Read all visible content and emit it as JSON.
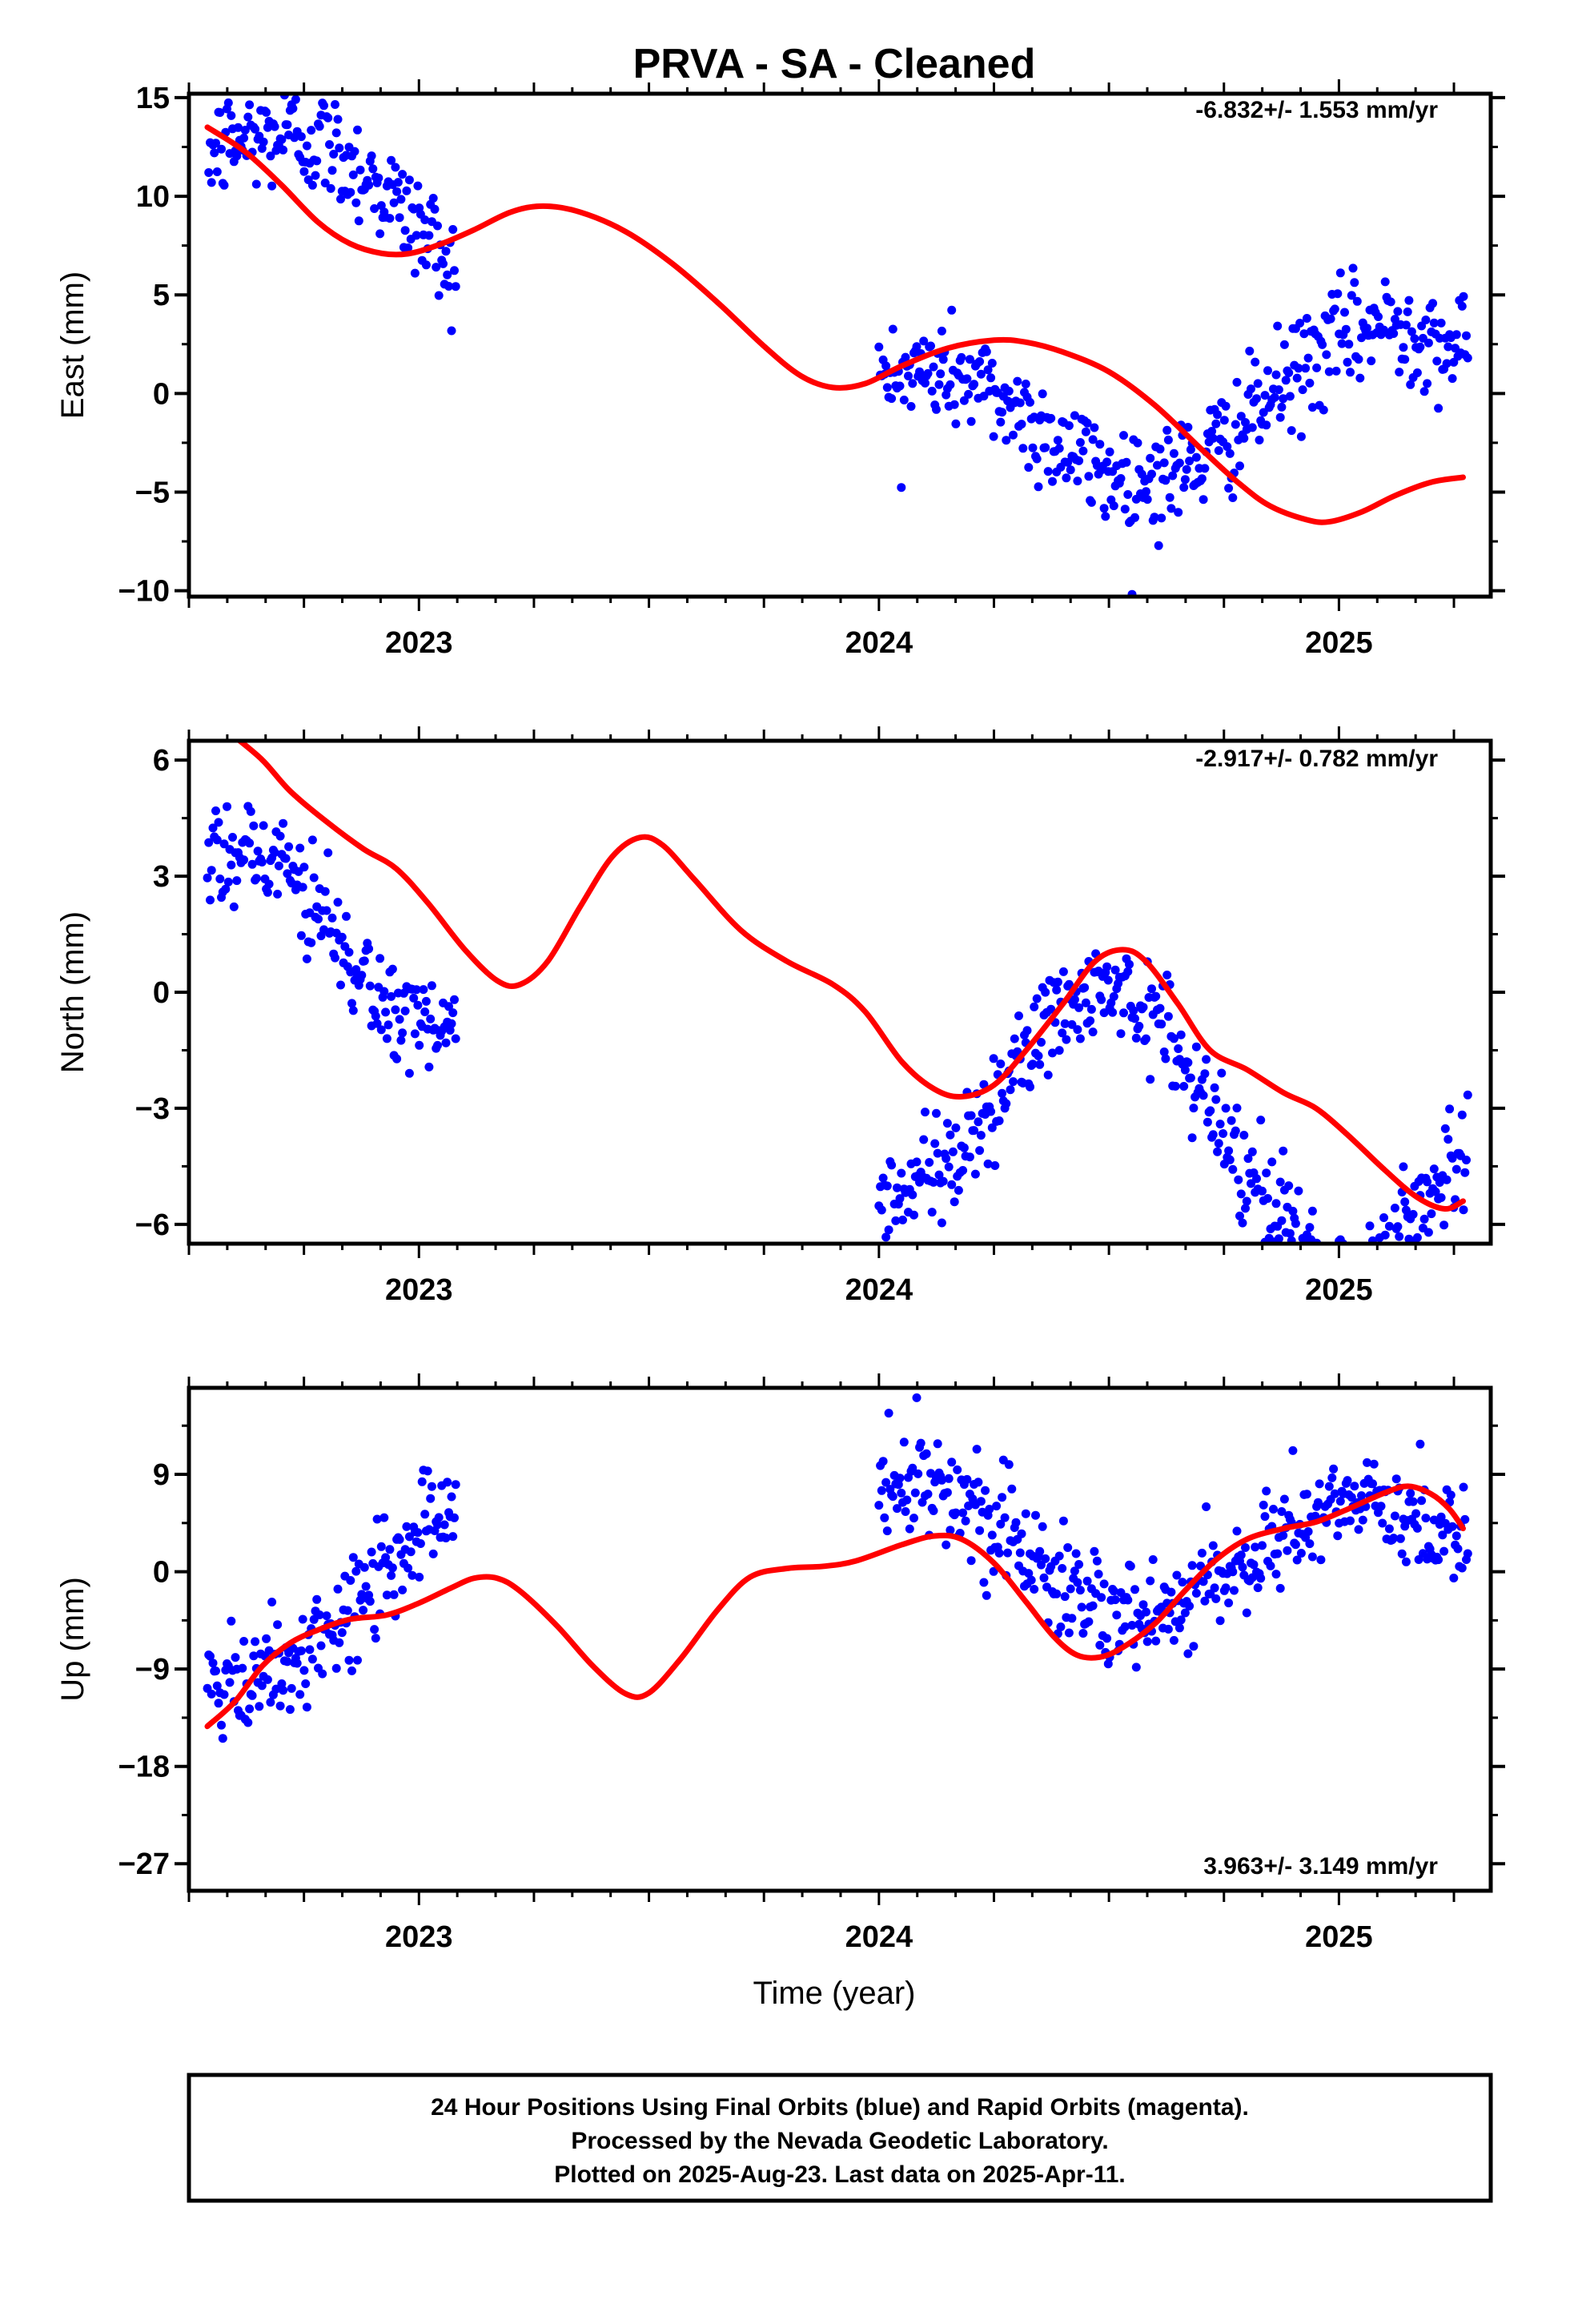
{
  "title": "PRVA  - SA - Cleaned",
  "xlabel": "Time (year)",
  "footer": [
    "24 Hour Positions Using Final Orbits (blue) and Rapid Orbits (magenta).",
    "Processed by the Nevada Geodetic Laboratory.",
    "Plotted on 2025-Aug-23. Last data on 2025-Apr-11."
  ],
  "colors": {
    "final_points": "#0000ff",
    "model": "#ff0000",
    "axes": "#000000"
  },
  "chart_data": [
    {
      "type": "scatter",
      "ylabel": "East (mm)",
      "rate_label": "-6.832+/- 1.553 mm/yr",
      "xlim": [
        2022.5,
        2025.33
      ],
      "ylim": [
        -10.3,
        15.2
      ],
      "yticks": [
        15,
        10,
        5,
        0,
        -5,
        -10
      ],
      "ytick_labels": [
        "15",
        "10",
        "5",
        "0",
        "−5",
        "−10"
      ],
      "xticks": [
        2023,
        2024,
        2025
      ],
      "xtick_labels": [
        "2023",
        "2024",
        "2025"
      ],
      "model_curve": [
        [
          2022.54,
          13.5
        ],
        [
          2022.62,
          12.3
        ],
        [
          2022.7,
          10.6
        ],
        [
          2022.78,
          8.7
        ],
        [
          2022.85,
          7.6
        ],
        [
          2022.92,
          7.1
        ],
        [
          2022.98,
          7.1
        ],
        [
          2023.05,
          7.6
        ],
        [
          2023.12,
          8.3
        ],
        [
          2023.2,
          9.2
        ],
        [
          2023.27,
          9.5
        ],
        [
          2023.35,
          9.2
        ],
        [
          2023.45,
          8.2
        ],
        [
          2023.55,
          6.6
        ],
        [
          2023.65,
          4.6
        ],
        [
          2023.75,
          2.4
        ],
        [
          2023.83,
          0.9
        ],
        [
          2023.9,
          0.3
        ],
        [
          2023.97,
          0.5
        ],
        [
          2024.05,
          1.4
        ],
        [
          2024.15,
          2.3
        ],
        [
          2024.25,
          2.7
        ],
        [
          2024.32,
          2.6
        ],
        [
          2024.4,
          2.1
        ],
        [
          2024.5,
          1.1
        ],
        [
          2024.6,
          -0.6
        ],
        [
          2024.7,
          -2.8
        ],
        [
          2024.78,
          -4.5
        ],
        [
          2024.85,
          -5.7
        ],
        [
          2024.93,
          -6.4
        ],
        [
          2024.98,
          -6.5
        ],
        [
          2025.05,
          -6.0
        ],
        [
          2025.12,
          -5.2
        ],
        [
          2025.2,
          -4.5
        ],
        [
          2025.27,
          -4.25
        ]
      ],
      "trend_segments": [
        {
          "x0": 2022.54,
          "x1": 2023.08,
          "y0": 12.2,
          "y1": 8.0,
          "amp": 2.4,
          "period": 0.9,
          "phase": 0.0
        },
        {
          "x0": 2024.0,
          "x1": 2025.28,
          "y0": -2.4,
          "y1": 0.6,
          "amp": 3.3,
          "period": 1.0,
          "phase": 1.0
        }
      ]
    },
    {
      "type": "scatter",
      "ylabel": "North (mm)",
      "rate_label": "-2.917+/- 0.782 mm/yr",
      "xlim": [
        2022.5,
        2025.33
      ],
      "ylim": [
        -6.5,
        6.5
      ],
      "yticks": [
        6,
        3,
        0,
        -3,
        -6
      ],
      "ytick_labels": [
        "6",
        "3",
        "0",
        "−3",
        "−6"
      ],
      "xticks": [
        2023,
        2024,
        2025
      ],
      "xtick_labels": [
        "2023",
        "2024",
        "2025"
      ],
      "model_curve": [
        [
          2022.6,
          6.6
        ],
        [
          2022.66,
          6.0
        ],
        [
          2022.72,
          5.2
        ],
        [
          2022.8,
          4.4
        ],
        [
          2022.88,
          3.7
        ],
        [
          2022.95,
          3.2
        ],
        [
          2023.02,
          2.3
        ],
        [
          2023.1,
          1.1
        ],
        [
          2023.17,
          0.3
        ],
        [
          2023.22,
          0.2
        ],
        [
          2023.28,
          0.8
        ],
        [
          2023.35,
          2.2
        ],
        [
          2023.42,
          3.5
        ],
        [
          2023.48,
          4.0
        ],
        [
          2023.53,
          3.8
        ],
        [
          2023.6,
          2.9
        ],
        [
          2023.7,
          1.6
        ],
        [
          2023.8,
          0.8
        ],
        [
          2023.9,
          0.2
        ],
        [
          2023.97,
          -0.5
        ],
        [
          2024.05,
          -1.8
        ],
        [
          2024.12,
          -2.5
        ],
        [
          2024.18,
          -2.7
        ],
        [
          2024.25,
          -2.4
        ],
        [
          2024.32,
          -1.5
        ],
        [
          2024.4,
          -0.3
        ],
        [
          2024.47,
          0.8
        ],
        [
          2024.53,
          1.1
        ],
        [
          2024.58,
          0.8
        ],
        [
          2024.65,
          -0.3
        ],
        [
          2024.72,
          -1.5
        ],
        [
          2024.8,
          -2.0
        ],
        [
          2024.88,
          -2.6
        ],
        [
          2024.95,
          -3.0
        ],
        [
          2025.02,
          -3.7
        ],
        [
          2025.1,
          -4.6
        ],
        [
          2025.17,
          -5.3
        ],
        [
          2025.23,
          -5.6
        ],
        [
          2025.27,
          -5.4
        ]
      ],
      "trend_segments": [
        {
          "x0": 2022.54,
          "x1": 2023.08,
          "y0": 3.6,
          "y1": -0.6,
          "amp": 1.0,
          "period": 0.55,
          "phase": 0.0
        },
        {
          "x0": 2024.0,
          "x1": 2025.28,
          "y0": -2.5,
          "y1": -4.3,
          "amp": 3.2,
          "period": 1.0,
          "phase": 4.7
        }
      ]
    },
    {
      "type": "scatter",
      "ylabel": "Up (mm)",
      "rate_label": "3.963+/- 3.149 mm/yr",
      "xlim": [
        2022.5,
        2025.33
      ],
      "ylim": [
        -29.5,
        17.0
      ],
      "yticks": [
        9,
        0,
        -9,
        -18,
        -27
      ],
      "ytick_labels": [
        "9",
        "0",
        "−9",
        "−18",
        "−27"
      ],
      "xticks": [
        2023,
        2024,
        2025
      ],
      "xtick_labels": [
        "2023",
        "2024",
        "2025"
      ],
      "model_curve": [
        [
          2022.54,
          -14.3
        ],
        [
          2022.6,
          -12.0
        ],
        [
          2022.66,
          -8.7
        ],
        [
          2022.72,
          -6.6
        ],
        [
          2022.78,
          -5.4
        ],
        [
          2022.85,
          -4.4
        ],
        [
          2022.93,
          -4.0
        ],
        [
          2023.0,
          -2.9
        ],
        [
          2023.07,
          -1.5
        ],
        [
          2023.12,
          -0.6
        ],
        [
          2023.17,
          -0.6
        ],
        [
          2023.22,
          -1.8
        ],
        [
          2023.3,
          -5.0
        ],
        [
          2023.38,
          -8.8
        ],
        [
          2023.45,
          -11.3
        ],
        [
          2023.5,
          -11.2
        ],
        [
          2023.57,
          -8.0
        ],
        [
          2023.65,
          -3.5
        ],
        [
          2023.72,
          -0.5
        ],
        [
          2023.8,
          0.3
        ],
        [
          2023.88,
          0.5
        ],
        [
          2023.95,
          1.0
        ],
        [
          2024.05,
          2.5
        ],
        [
          2024.12,
          3.3
        ],
        [
          2024.18,
          3.0
        ],
        [
          2024.25,
          0.8
        ],
        [
          2024.32,
          -2.8
        ],
        [
          2024.38,
          -6.0
        ],
        [
          2024.43,
          -7.7
        ],
        [
          2024.48,
          -7.9
        ],
        [
          2024.53,
          -7.0
        ],
        [
          2024.6,
          -4.8
        ],
        [
          2024.66,
          -2.0
        ],
        [
          2024.73,
          1.0
        ],
        [
          2024.8,
          3.0
        ],
        [
          2024.88,
          4.0
        ],
        [
          2024.95,
          4.6
        ],
        [
          2025.02,
          5.8
        ],
        [
          2025.1,
          7.3
        ],
        [
          2025.15,
          7.9
        ],
        [
          2025.2,
          7.2
        ],
        [
          2025.24,
          5.8
        ],
        [
          2025.27,
          4.0
        ]
      ],
      "trend_segments": [
        {
          "x0": 2022.54,
          "x1": 2023.08,
          "y0": -9.0,
          "y1": 2.0,
          "amp": 4.0,
          "period": 0.8,
          "phase": 3.6
        },
        {
          "x0": 2024.0,
          "x1": 2025.28,
          "y0": 3.0,
          "y1": 0.0,
          "amp": 6.0,
          "period": 1.0,
          "phase": 1.2
        }
      ]
    }
  ]
}
